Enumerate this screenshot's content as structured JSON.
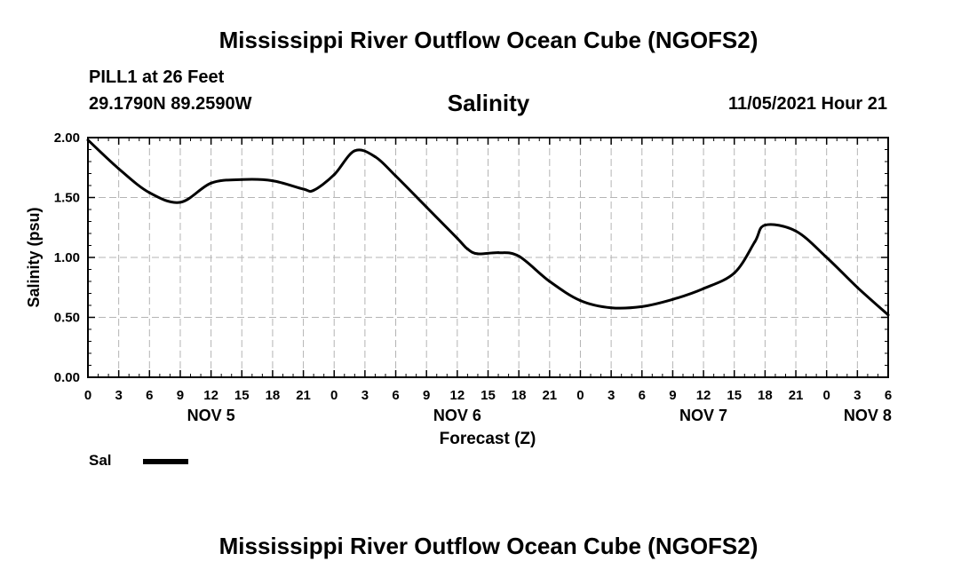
{
  "header": {
    "title": "Mississippi River Outflow Ocean Cube (NGOFS2)",
    "station": "PILL1 at 26 Feet",
    "coords": "29.1790N  89.2590W",
    "date": "11/05/2021 Hour 21"
  },
  "footer": {
    "title": "Mississippi River Outflow Ocean Cube (NGOFS2)"
  },
  "legend": {
    "label": "Sal"
  },
  "chart_data": {
    "type": "line",
    "title": "Salinity",
    "xlabel": "Forecast (Z)",
    "ylabel": "Salinity (psu)",
    "ylim": [
      0,
      2
    ],
    "xlim": [
      0,
      78
    ],
    "x_unit": "hours since NOV 5 00Z",
    "grid": true,
    "legend_position": "bottom-left",
    "y_ticks": [
      "0.00",
      "0.50",
      "1.00",
      "1.50",
      "2.00"
    ],
    "x_tick_labels": [
      "0",
      "3",
      "6",
      "9",
      "12",
      "15",
      "18",
      "21",
      "0",
      "3",
      "6",
      "9",
      "12",
      "15",
      "18",
      "21",
      "0",
      "3",
      "6",
      "9",
      "12",
      "15",
      "18",
      "21",
      "0",
      "3",
      "6"
    ],
    "day_labels": [
      {
        "label": "NOV 5",
        "hour": 12
      },
      {
        "label": "NOV 6",
        "hour": 36
      },
      {
        "label": "NOV 7",
        "hour": 60
      },
      {
        "label": "NOV 8",
        "hour": 76
      }
    ],
    "series": [
      {
        "name": "Sal",
        "color": "#000000",
        "x": [
          0,
          3,
          6,
          9,
          12,
          15,
          18,
          21,
          22,
          24,
          26,
          28,
          30,
          33,
          36,
          37,
          38,
          40,
          42,
          45,
          48,
          51,
          54,
          57,
          60,
          63,
          65,
          66,
          69,
          72,
          75,
          78
        ],
        "values": [
          1.98,
          1.74,
          1.54,
          1.46,
          1.62,
          1.65,
          1.64,
          1.57,
          1.56,
          1.69,
          1.89,
          1.84,
          1.68,
          1.42,
          1.16,
          1.07,
          1.03,
          1.04,
          1.01,
          0.8,
          0.64,
          0.58,
          0.59,
          0.65,
          0.74,
          0.87,
          1.13,
          1.27,
          1.22,
          1.0,
          0.75,
          0.52
        ]
      }
    ]
  }
}
